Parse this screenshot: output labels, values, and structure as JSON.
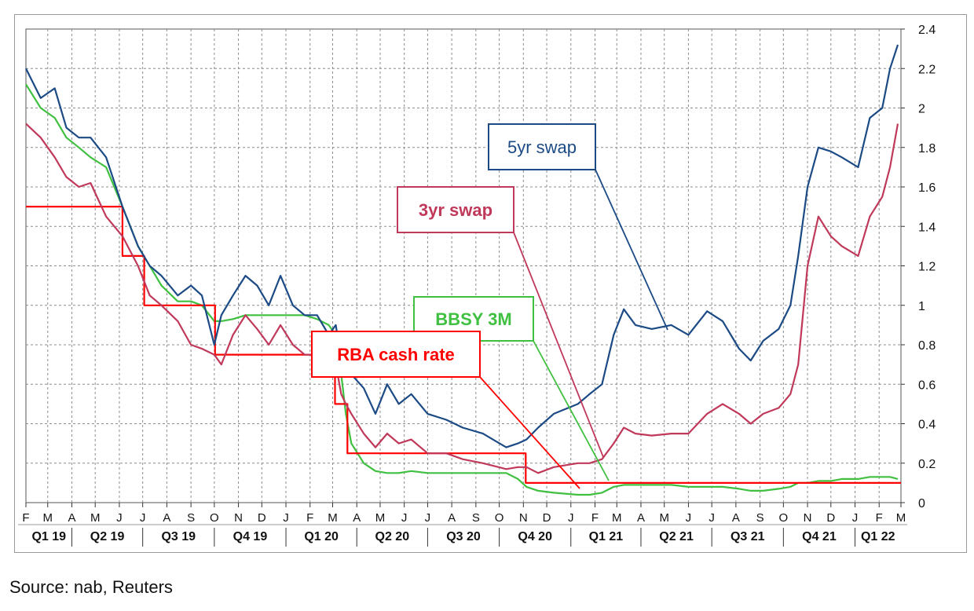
{
  "source_note": "Source: nab, Reuters",
  "colors": {
    "five_yr": "#1b4a85",
    "three_yr": "#c0395a",
    "bbsy": "#40c040",
    "rba": "#ff0000",
    "grid": "#8c8c8c"
  },
  "chart_data": {
    "type": "line",
    "title": "",
    "xlabel": "",
    "ylabel": "",
    "y_axis_side": "right",
    "ylim": [
      0,
      2.4
    ],
    "y_ticks": [
      "0",
      "0.2",
      "0.4",
      "0.6",
      "0.8",
      "1",
      "1.2",
      "1.4",
      "1.6",
      "1.8",
      "2",
      "2.2",
      "2.4"
    ],
    "grid": true,
    "x_range": [
      "2019-02-01",
      "2022-03-01"
    ],
    "month_ticks": [
      "F",
      "M",
      "A",
      "M",
      "J",
      "J",
      "A",
      "S",
      "O",
      "N",
      "D",
      "J",
      "F",
      "M",
      "A",
      "M",
      "J",
      "J",
      "A",
      "S",
      "O",
      "N",
      "D",
      "J",
      "F",
      "M",
      "A",
      "M",
      "J",
      "J",
      "A",
      "S",
      "O",
      "N",
      "D",
      "J",
      "F",
      "M"
    ],
    "quarter_labels": [
      "Q1 19",
      "Q2 19",
      "Q3 19",
      "Q4 19",
      "Q1 20",
      "Q2 20",
      "Q3 20",
      "Q4 20",
      "Q1 21",
      "Q2 21",
      "Q3 21",
      "Q4 21",
      "Q1 22"
    ],
    "series": [
      {
        "name": "5yr swap",
        "color_key": "five_yr",
        "x": [
          "2019-02-01",
          "2019-02-20",
          "2019-03-10",
          "2019-03-25",
          "2019-04-10",
          "2019-04-25",
          "2019-05-15",
          "2019-06-05",
          "2019-06-25",
          "2019-07-10",
          "2019-07-25",
          "2019-08-15",
          "2019-09-01",
          "2019-09-15",
          "2019-10-01",
          "2019-10-10",
          "2019-10-25",
          "2019-11-10",
          "2019-11-25",
          "2019-12-10",
          "2019-12-25",
          "2020-01-10",
          "2020-01-25",
          "2020-02-10",
          "2020-02-25",
          "2020-03-05",
          "2020-03-12",
          "2020-03-18",
          "2020-03-25",
          "2020-04-10",
          "2020-04-25",
          "2020-05-10",
          "2020-05-25",
          "2020-06-10",
          "2020-07-01",
          "2020-07-25",
          "2020-08-15",
          "2020-09-10",
          "2020-10-10",
          "2020-10-25",
          "2020-11-05",
          "2020-11-20",
          "2020-12-10",
          "2021-01-10",
          "2021-01-25",
          "2021-02-10",
          "2021-02-25",
          "2021-03-10",
          "2021-03-25",
          "2021-04-15",
          "2021-05-10",
          "2021-06-01",
          "2021-06-25",
          "2021-07-15",
          "2021-08-05",
          "2021-08-20",
          "2021-09-05",
          "2021-09-25",
          "2021-10-10",
          "2021-10-20",
          "2021-11-01",
          "2021-11-15",
          "2021-12-01",
          "2021-12-15",
          "2022-01-05",
          "2022-01-20",
          "2022-02-05",
          "2022-02-15",
          "2022-02-25"
        ],
        "y": [
          2.2,
          2.05,
          2.1,
          1.9,
          1.85,
          1.85,
          1.75,
          1.5,
          1.3,
          1.2,
          1.15,
          1.05,
          1.1,
          1.05,
          0.8,
          0.95,
          1.05,
          1.15,
          1.1,
          1.0,
          1.15,
          1.0,
          0.95,
          0.95,
          0.85,
          0.9,
          0.72,
          0.8,
          0.65,
          0.58,
          0.45,
          0.6,
          0.5,
          0.55,
          0.45,
          0.42,
          0.38,
          0.35,
          0.28,
          0.3,
          0.32,
          0.38,
          0.45,
          0.5,
          0.55,
          0.6,
          0.85,
          0.98,
          0.9,
          0.88,
          0.9,
          0.85,
          0.97,
          0.92,
          0.78,
          0.72,
          0.82,
          0.88,
          1.0,
          1.25,
          1.6,
          1.8,
          1.78,
          1.75,
          1.7,
          1.95,
          2.0,
          2.2,
          2.32
        ]
      },
      {
        "name": "3yr swap",
        "color_key": "three_yr",
        "x": [
          "2019-02-01",
          "2019-02-20",
          "2019-03-10",
          "2019-03-25",
          "2019-04-10",
          "2019-04-25",
          "2019-05-15",
          "2019-06-05",
          "2019-06-25",
          "2019-07-10",
          "2019-07-25",
          "2019-08-15",
          "2019-09-01",
          "2019-09-15",
          "2019-10-01",
          "2019-10-10",
          "2019-10-25",
          "2019-11-10",
          "2019-11-25",
          "2019-12-10",
          "2019-12-25",
          "2020-01-10",
          "2020-01-25",
          "2020-02-10",
          "2020-02-25",
          "2020-03-05",
          "2020-03-12",
          "2020-03-18",
          "2020-03-25",
          "2020-04-10",
          "2020-04-25",
          "2020-05-10",
          "2020-05-25",
          "2020-06-10",
          "2020-07-01",
          "2020-07-25",
          "2020-08-15",
          "2020-09-10",
          "2020-10-10",
          "2020-10-25",
          "2020-11-05",
          "2020-11-20",
          "2020-12-10",
          "2021-01-10",
          "2021-01-25",
          "2021-02-10",
          "2021-02-25",
          "2021-03-10",
          "2021-03-25",
          "2021-04-15",
          "2021-05-10",
          "2021-06-01",
          "2021-06-25",
          "2021-07-15",
          "2021-08-05",
          "2021-08-20",
          "2021-09-05",
          "2021-09-25",
          "2021-10-10",
          "2021-10-20",
          "2021-11-01",
          "2021-11-15",
          "2021-12-01",
          "2021-12-15",
          "2022-01-05",
          "2022-01-20",
          "2022-02-05",
          "2022-02-15",
          "2022-02-25"
        ],
        "y": [
          1.92,
          1.85,
          1.75,
          1.65,
          1.6,
          1.62,
          1.45,
          1.35,
          1.2,
          1.05,
          1.0,
          0.92,
          0.8,
          0.78,
          0.75,
          0.7,
          0.85,
          0.95,
          0.88,
          0.8,
          0.9,
          0.8,
          0.75,
          0.75,
          0.68,
          0.7,
          0.55,
          0.5,
          0.45,
          0.35,
          0.28,
          0.35,
          0.3,
          0.32,
          0.25,
          0.25,
          0.22,
          0.2,
          0.17,
          0.18,
          0.18,
          0.15,
          0.18,
          0.2,
          0.2,
          0.22,
          0.3,
          0.38,
          0.35,
          0.34,
          0.35,
          0.35,
          0.45,
          0.5,
          0.45,
          0.4,
          0.45,
          0.48,
          0.55,
          0.7,
          1.2,
          1.45,
          1.35,
          1.3,
          1.25,
          1.45,
          1.55,
          1.7,
          1.92
        ]
      },
      {
        "name": "BBSY 3M",
        "color_key": "bbsy",
        "x": [
          "2019-02-01",
          "2019-02-20",
          "2019-03-10",
          "2019-03-25",
          "2019-04-10",
          "2019-04-25",
          "2019-05-15",
          "2019-06-05",
          "2019-06-25",
          "2019-07-10",
          "2019-07-25",
          "2019-08-15",
          "2019-09-01",
          "2019-09-15",
          "2019-10-01",
          "2019-10-10",
          "2019-10-25",
          "2019-11-10",
          "2019-11-25",
          "2019-12-10",
          "2019-12-25",
          "2020-01-10",
          "2020-01-25",
          "2020-02-10",
          "2020-02-25",
          "2020-03-05",
          "2020-03-12",
          "2020-03-18",
          "2020-03-25",
          "2020-04-10",
          "2020-04-25",
          "2020-05-10",
          "2020-05-25",
          "2020-06-10",
          "2020-07-01",
          "2020-07-25",
          "2020-08-15",
          "2020-09-10",
          "2020-10-10",
          "2020-10-25",
          "2020-11-05",
          "2020-11-20",
          "2020-12-10",
          "2021-01-10",
          "2021-01-25",
          "2021-02-10",
          "2021-02-25",
          "2021-03-10",
          "2021-03-25",
          "2021-04-15",
          "2021-05-10",
          "2021-06-01",
          "2021-06-25",
          "2021-07-15",
          "2021-08-05",
          "2021-08-20",
          "2021-09-05",
          "2021-09-25",
          "2021-10-10",
          "2021-10-20",
          "2021-11-01",
          "2021-11-15",
          "2021-12-01",
          "2021-12-15",
          "2022-01-05",
          "2022-01-20",
          "2022-02-05",
          "2022-02-15",
          "2022-02-25"
        ],
        "y": [
          2.12,
          2.0,
          1.95,
          1.85,
          1.8,
          1.75,
          1.7,
          1.5,
          1.3,
          1.2,
          1.1,
          1.02,
          1.02,
          1.0,
          0.92,
          0.92,
          0.93,
          0.95,
          0.95,
          0.95,
          0.95,
          0.95,
          0.95,
          0.93,
          0.9,
          0.85,
          0.65,
          0.45,
          0.3,
          0.2,
          0.16,
          0.15,
          0.15,
          0.16,
          0.15,
          0.15,
          0.15,
          0.15,
          0.15,
          0.12,
          0.08,
          0.06,
          0.05,
          0.04,
          0.04,
          0.05,
          0.08,
          0.09,
          0.09,
          0.09,
          0.09,
          0.08,
          0.08,
          0.08,
          0.07,
          0.06,
          0.06,
          0.07,
          0.08,
          0.1,
          0.1,
          0.11,
          0.11,
          0.12,
          0.12,
          0.13,
          0.13,
          0.13,
          0.12
        ]
      },
      {
        "name": "RBA cash rate",
        "color_key": "rba",
        "step": true,
        "x": [
          "2019-02-01",
          "2019-06-05",
          "2019-07-03",
          "2019-10-02",
          "2020-03-04",
          "2020-03-20",
          "2020-11-04",
          "2022-03-01"
        ],
        "y": [
          1.5,
          1.25,
          1.0,
          0.75,
          0.5,
          0.25,
          0.1,
          0.1
        ]
      }
    ],
    "annotations": [
      {
        "text": "5yr swap",
        "color_key": "five_yr",
        "box": "white-bordered",
        "points_to": "2021-05-20"
      },
      {
        "text": "3yr swap",
        "color_key": "three_yr",
        "box": "white-bordered",
        "points_to": "2021-02-15"
      },
      {
        "text": "BBSY 3M",
        "color_key": "bbsy",
        "box": "white-bordered",
        "points_to": "2021-02-10"
      },
      {
        "text": "RBA cash rate",
        "color_key": "rba",
        "box": "white-bordered",
        "points_to": "2021-01-05"
      }
    ]
  }
}
